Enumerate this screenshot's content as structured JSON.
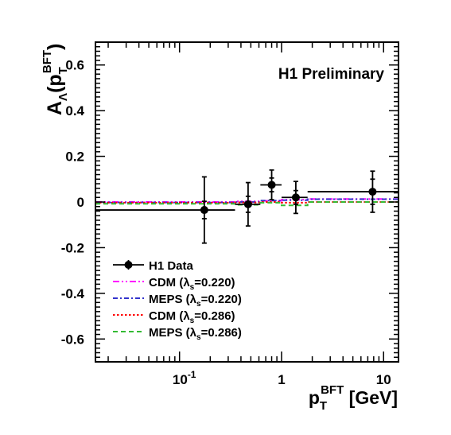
{
  "chart_data": {
    "type": "scatter",
    "title": "",
    "annotation": "H1 Preliminary",
    "x_scale": "log",
    "xlim": [
      0.015,
      14
    ],
    "ylim": [
      -0.7,
      0.7
    ],
    "grid": false,
    "legend_placement": "bottom-left",
    "xlabel": {
      "main": "p",
      "sub": "T",
      "sup": "BFT",
      "unit": " [GeV]"
    },
    "ylabel": {
      "main": "A",
      "sub": "Λ",
      "open": "(p",
      "inner_sub": "T",
      "inner_sup": "BFT",
      "close": ")"
    },
    "y_ticks": [
      {
        "value": 0.6,
        "label": "0.6"
      },
      {
        "value": 0.4,
        "label": "0.4"
      },
      {
        "value": 0.2,
        "label": "0.2"
      },
      {
        "value": 0,
        "label": "0"
      },
      {
        "value": -0.2,
        "label": "-0.2"
      },
      {
        "value": -0.4,
        "label": "-0.4"
      },
      {
        "value": -0.6,
        "label": "-0.6"
      }
    ],
    "x_ticks": [
      {
        "value": 0.1,
        "base": "10",
        "exp": "-1"
      },
      {
        "value": 1,
        "base": "1",
        "exp": ""
      },
      {
        "value": 10,
        "base": "10",
        "exp": ""
      }
    ],
    "data": {
      "name": "H1 Data",
      "color": "#000000",
      "points": [
        {
          "x": 0.175,
          "y": -0.035,
          "xlo": 0.015,
          "xhi": 0.35,
          "ystat": 0.038,
          "ytot": 0.145
        },
        {
          "x": 0.47,
          "y": -0.01,
          "xlo": 0.35,
          "xhi": 0.62,
          "ystat": 0.035,
          "ytot": 0.095
        },
        {
          "x": 0.8,
          "y": 0.075,
          "xlo": 0.62,
          "xhi": 1.0,
          "ystat": 0.03,
          "ytot": 0.065
        },
        {
          "x": 1.38,
          "y": 0.02,
          "xlo": 1.0,
          "xhi": 1.8,
          "ystat": 0.03,
          "ytot": 0.07
        },
        {
          "x": 7.8,
          "y": 0.045,
          "xlo": 1.8,
          "xhi": 14,
          "ystat": 0.055,
          "ytot": 0.09
        }
      ]
    },
    "series": [
      {
        "name": "CDM (λs=0.220)",
        "label_main": "CDM (λ",
        "label_sub": "s",
        "label_tail": "=0.220)",
        "color": "#ff00ff",
        "dash": "8,3,2,3,2,3",
        "edges": [
          0.015,
          0.35,
          0.62,
          1.0,
          1.8,
          14
        ],
        "values": [
          0.0,
          0.003,
          0.005,
          0.01,
          0.013
        ]
      },
      {
        "name": "MEPS (λs=0.220)",
        "label_main": "MEPS (λ",
        "label_sub": "s",
        "label_tail": "=0.220)",
        "color": "#3333cc",
        "dash": "6,3,2,3",
        "edges": [
          0.015,
          0.35,
          0.62,
          1.0,
          1.8,
          14
        ],
        "values": [
          -0.002,
          0.0,
          0.006,
          0.008,
          0.012
        ]
      },
      {
        "name": "CDM (λs=0.286)",
        "label_main": "CDM (λ",
        "label_sub": "s",
        "label_tail": "=0.286)",
        "color": "#ff0000",
        "dash": "2.5,2.5",
        "edges": [
          0.015,
          0.35,
          0.62,
          1.0,
          1.8,
          14
        ],
        "values": [
          -0.003,
          -0.002,
          0.0,
          -0.003,
          0.0
        ]
      },
      {
        "name": "MEPS (λs=0.286)",
        "label_main": "MEPS (λ",
        "label_sub": "s",
        "label_tail": "=0.286)",
        "color": "#33bb33",
        "dash": "6,4",
        "edges": [
          0.015,
          0.35,
          0.62,
          1.0,
          1.8,
          14
        ],
        "values": [
          -0.008,
          -0.012,
          -0.003,
          -0.015,
          0.0
        ]
      }
    ]
  }
}
